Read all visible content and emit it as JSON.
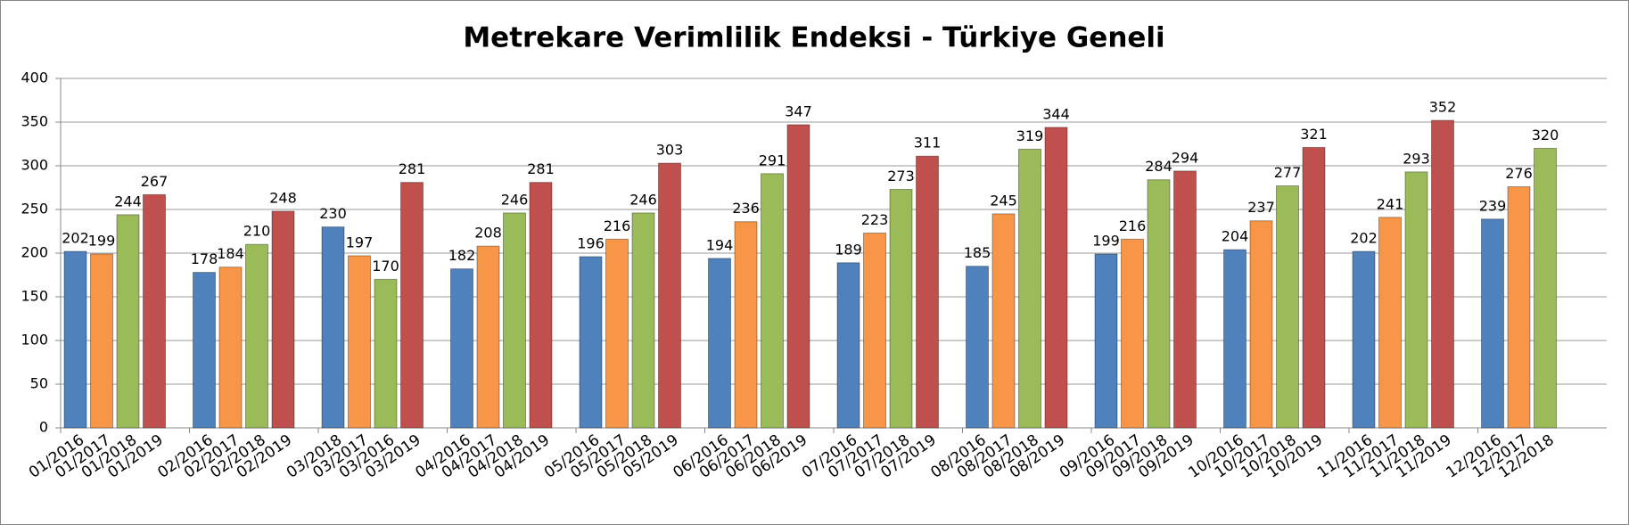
{
  "chart_data": {
    "type": "bar",
    "title": "Metrekare Verimlilik Endeksi - Türkiye Geneli",
    "colors": [
      "#4f81bd",
      "#f79646",
      "#9bbb59",
      "#c0504d"
    ],
    "ylim": [
      0,
      400
    ],
    "yticks": [
      0,
      50,
      100,
      150,
      200,
      250,
      300,
      350,
      400
    ],
    "grid": true,
    "groups": [
      {
        "categories": [
          "01/2016",
          "01/2017",
          "01/2018",
          "01/2019"
        ],
        "values": [
          202,
          199,
          244,
          267
        ]
      },
      {
        "categories": [
          "02/2016",
          "02/2017",
          "02/2018",
          "02/2019"
        ],
        "values": [
          178,
          184,
          210,
          248
        ]
      },
      {
        "categories": [
          "03/2018",
          "03/2017",
          "03/2016",
          "03/2019"
        ],
        "values": [
          230,
          197,
          170,
          281
        ]
      },
      {
        "categories": [
          "04/2016",
          "04/2017",
          "04/2018",
          "04/2019"
        ],
        "values": [
          182,
          208,
          246,
          281
        ]
      },
      {
        "categories": [
          "05/2016",
          "05/2017",
          "05/2018",
          "05/2019"
        ],
        "values": [
          196,
          216,
          246,
          303
        ]
      },
      {
        "categories": [
          "06/2016",
          "06/2017",
          "06/2018",
          "06/2019"
        ],
        "values": [
          194,
          236,
          291,
          347
        ]
      },
      {
        "categories": [
          "07/2016",
          "07/2017",
          "07/2018",
          "07/2019"
        ],
        "values": [
          189,
          223,
          273,
          311
        ]
      },
      {
        "categories": [
          "08/2016",
          "08/2017",
          "08/2018",
          "08/2019"
        ],
        "values": [
          185,
          245,
          319,
          344
        ]
      },
      {
        "categories": [
          "09/2016",
          "09/2017",
          "09/2018",
          "09/2019"
        ],
        "values": [
          199,
          216,
          284,
          294
        ]
      },
      {
        "categories": [
          "10/2016",
          "10/2017",
          "10/2018",
          "10/2019"
        ],
        "values": [
          204,
          237,
          277,
          321
        ]
      },
      {
        "categories": [
          "11/2016",
          "11/2017",
          "11/2018",
          "11/2019"
        ],
        "values": [
          202,
          241,
          293,
          352
        ]
      },
      {
        "categories": [
          "12/2016",
          "12/2017",
          "12/2018"
        ],
        "values": [
          239,
          276,
          320
        ]
      }
    ]
  }
}
